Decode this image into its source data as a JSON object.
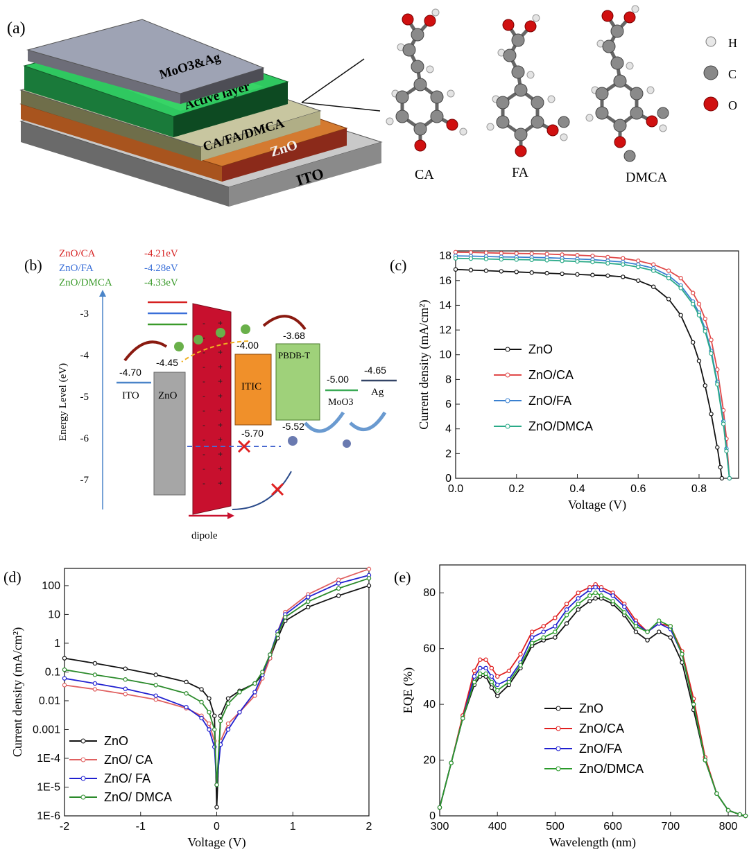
{
  "panel_a": {
    "label": "(a)",
    "layers": [
      "MoO3&Ag",
      "Active layer",
      "CA/FA/DMCA",
      "ZnO",
      "ITO"
    ],
    "molecules": [
      "CA",
      "FA",
      "DMCA"
    ],
    "atom_legend": [
      "H",
      "C",
      "O"
    ]
  },
  "panel_b": {
    "label": "(b)",
    "legend": [
      {
        "name": "ZnO/CA",
        "value": "-4.21eV",
        "color": "#d62020"
      },
      {
        "name": "ZnO/FA",
        "value": "-4.28eV",
        "color": "#3a6fd8"
      },
      {
        "name": "ZnO/DMCA",
        "value": "-4.33eV",
        "color": "#3a9a2a"
      }
    ],
    "ylabel": "Energy Level   (eV)",
    "yticks": [
      "-3",
      "-4",
      "-5",
      "-6",
      "-7"
    ],
    "levels": {
      "ito": "-4.70",
      "zno": "-4.45",
      "itic_lumo": "-4.00",
      "itic_homo": "-5.70",
      "pbdb_lumo": "-3.68",
      "pbdb_homo": "-5.52",
      "moo3": "-5.00",
      "ag": "-4.65"
    },
    "blocks": {
      "ito": "ITO",
      "zno": "ZnO",
      "itic": "ITIC",
      "pbdb": "PBDB-T",
      "moo3": "MoO3",
      "ag": "Ag"
    },
    "dipole": "dipole",
    "colors": {
      "zno": "#a6a6a6",
      "dipole": "#c8102e",
      "itic": "#f0902a",
      "pbdb": "#9fd17a"
    }
  },
  "chart_data": [
    {
      "id": "c",
      "type": "line",
      "label": "(c)",
      "xlabel": "Voltage (V)",
      "ylabel": "Current density (mA/cm²)",
      "xlim": [
        0,
        0.93
      ],
      "ylim": [
        0,
        18.4
      ],
      "xticks": [
        "0.0",
        "0.2",
        "0.4",
        "0.6",
        "0.8"
      ],
      "yticks": [
        "0",
        "2",
        "4",
        "6",
        "8",
        "10",
        "12",
        "14",
        "16",
        "18"
      ],
      "legend_position": "center",
      "series": [
        {
          "name": "ZnO",
          "color": "#111111",
          "x": [
            0,
            0.05,
            0.1,
            0.15,
            0.2,
            0.25,
            0.3,
            0.35,
            0.4,
            0.45,
            0.5,
            0.55,
            0.6,
            0.65,
            0.7,
            0.74,
            0.78,
            0.8,
            0.82,
            0.84,
            0.86,
            0.87,
            0.875
          ],
          "y": [
            16.9,
            16.85,
            16.8,
            16.75,
            16.7,
            16.65,
            16.6,
            16.55,
            16.5,
            16.45,
            16.4,
            16.3,
            16.0,
            15.5,
            14.5,
            13.2,
            11.0,
            9.5,
            7.5,
            5.2,
            2.5,
            0.9,
            0
          ]
        },
        {
          "name": "ZnO/CA",
          "color": "#e04848",
          "x": [
            0,
            0.05,
            0.1,
            0.15,
            0.2,
            0.25,
            0.3,
            0.35,
            0.4,
            0.45,
            0.5,
            0.55,
            0.6,
            0.65,
            0.7,
            0.74,
            0.78,
            0.8,
            0.82,
            0.84,
            0.86,
            0.88,
            0.89,
            0.9
          ],
          "y": [
            18.3,
            18.28,
            18.25,
            18.22,
            18.2,
            18.18,
            18.15,
            18.1,
            18.05,
            18.0,
            17.9,
            17.8,
            17.6,
            17.3,
            16.8,
            16.2,
            15.0,
            14.1,
            12.9,
            11.2,
            8.8,
            5.5,
            3.2,
            0
          ]
        },
        {
          "name": "ZnO/FA",
          "color": "#3a80d0",
          "x": [
            0,
            0.05,
            0.1,
            0.15,
            0.2,
            0.25,
            0.3,
            0.35,
            0.4,
            0.45,
            0.5,
            0.55,
            0.6,
            0.65,
            0.7,
            0.74,
            0.78,
            0.8,
            0.82,
            0.84,
            0.86,
            0.88,
            0.89,
            0.9
          ],
          "y": [
            18.0,
            17.98,
            17.95,
            17.92,
            17.9,
            17.88,
            17.85,
            17.8,
            17.75,
            17.7,
            17.6,
            17.5,
            17.3,
            17.0,
            16.4,
            15.6,
            14.3,
            13.4,
            12.1,
            10.3,
            7.8,
            4.6,
            2.4,
            0
          ]
        },
        {
          "name": "ZnO/DMCA",
          "color": "#2aaa88",
          "x": [
            0,
            0.05,
            0.1,
            0.15,
            0.2,
            0.25,
            0.3,
            0.35,
            0.4,
            0.45,
            0.5,
            0.55,
            0.6,
            0.65,
            0.7,
            0.74,
            0.78,
            0.8,
            0.82,
            0.84,
            0.86,
            0.88,
            0.89,
            0.9
          ],
          "y": [
            17.8,
            17.78,
            17.75,
            17.72,
            17.7,
            17.68,
            17.65,
            17.6,
            17.55,
            17.5,
            17.4,
            17.3,
            17.1,
            16.8,
            16.2,
            15.4,
            14.1,
            13.2,
            11.9,
            10.1,
            7.6,
            4.4,
            2.2,
            0
          ]
        }
      ]
    },
    {
      "id": "d",
      "type": "line",
      "label": "(d)",
      "xlabel": "Voltage (V)",
      "ylabel": "Current density (mA/cm²)",
      "xlim": [
        -2,
        2
      ],
      "ylim_log10": [
        -6,
        2.6
      ],
      "xticks": [
        "-2",
        "-1",
        "0",
        "1",
        "2"
      ],
      "yticks": [
        "1E-6",
        "1E-5",
        "1E-4",
        "0.001",
        "0.01",
        "0.1",
        "1",
        "10",
        "100"
      ],
      "yscale": "log",
      "legend_position": "bottom-left",
      "series": [
        {
          "name": "ZnO",
          "color": "#111111",
          "x": [
            -2,
            -1.6,
            -1.2,
            -0.8,
            -0.4,
            -0.2,
            -0.1,
            -0.03,
            0,
            0.05,
            0.15,
            0.3,
            0.5,
            0.6,
            0.7,
            0.8,
            0.9,
            1.2,
            1.6,
            2
          ],
          "y": [
            0.3,
            0.2,
            0.13,
            0.08,
            0.045,
            0.025,
            0.012,
            0.003,
            2e-06,
            0.003,
            0.012,
            0.022,
            0.04,
            0.08,
            0.3,
            1.5,
            6,
            18,
            45,
            100
          ]
        },
        {
          "name": "ZnO/ CA",
          "color": "#e06060",
          "x": [
            -2,
            -1.6,
            -1.2,
            -0.8,
            -0.4,
            -0.2,
            -0.1,
            -0.03,
            0,
            0.05,
            0.15,
            0.3,
            0.5,
            0.6,
            0.7,
            0.8,
            0.9,
            1.2,
            1.6,
            2
          ],
          "y": [
            0.035,
            0.025,
            0.017,
            0.011,
            0.0055,
            0.003,
            0.0016,
            0.0004,
            1.2e-05,
            0.0004,
            0.0016,
            0.004,
            0.015,
            0.06,
            0.3,
            2.5,
            12,
            50,
            160,
            380
          ]
        },
        {
          "name": "ZnO/ FA",
          "color": "#2020d0",
          "x": [
            -2,
            -1.6,
            -1.2,
            -0.8,
            -0.4,
            -0.2,
            -0.1,
            -0.03,
            0,
            0.05,
            0.15,
            0.3,
            0.5,
            0.6,
            0.7,
            0.8,
            0.9,
            1.2,
            1.6,
            2
          ],
          "y": [
            0.06,
            0.04,
            0.026,
            0.015,
            0.006,
            0.0025,
            0.001,
            0.00025,
            1.2e-05,
            0.0003,
            0.001,
            0.004,
            0.02,
            0.08,
            0.4,
            2.5,
            10,
            40,
            120,
            230
          ]
        },
        {
          "name": "ZnO/ DMCA",
          "color": "#2a8a2a",
          "x": [
            -2,
            -1.6,
            -1.2,
            -0.8,
            -0.4,
            -0.2,
            -0.1,
            -0.03,
            0,
            0.05,
            0.15,
            0.3,
            0.5,
            0.6,
            0.7,
            0.8,
            0.9,
            1.2,
            1.6,
            2
          ],
          "y": [
            0.12,
            0.08,
            0.055,
            0.035,
            0.018,
            0.009,
            0.004,
            0.001,
            1.2e-05,
            0.002,
            0.008,
            0.02,
            0.04,
            0.1,
            0.4,
            2,
            8,
            28,
            80,
            180
          ]
        }
      ]
    },
    {
      "id": "e",
      "type": "line",
      "label": "(e)",
      "xlabel": "Wavelength (nm)",
      "ylabel": "EQE (%)",
      "xlim": [
        300,
        830
      ],
      "ylim": [
        0,
        90
      ],
      "xticks": [
        "300",
        "400",
        "500",
        "600",
        "700",
        "800"
      ],
      "yticks": [
        "0",
        "20",
        "40",
        "60",
        "80"
      ],
      "legend_position": "center-bottom",
      "series": [
        {
          "name": "ZnO",
          "color": "#111111",
          "x": [
            300,
            320,
            340,
            360,
            370,
            380,
            390,
            400,
            420,
            440,
            460,
            480,
            500,
            520,
            540,
            560,
            570,
            580,
            600,
            620,
            640,
            660,
            680,
            700,
            720,
            740,
            760,
            780,
            800,
            820,
            830
          ],
          "y": [
            3,
            19,
            35,
            47,
            50,
            50,
            46,
            43,
            47,
            53,
            61,
            63,
            64,
            69,
            74,
            77,
            78,
            78,
            76,
            72,
            66,
            63,
            66,
            64,
            55,
            38,
            20,
            8,
            2,
            0.5,
            0
          ]
        },
        {
          "name": "ZnO/CA",
          "color": "#e02020",
          "x": [
            300,
            320,
            340,
            360,
            370,
            380,
            390,
            400,
            420,
            440,
            460,
            480,
            500,
            520,
            540,
            560,
            570,
            580,
            600,
            620,
            640,
            660,
            680,
            700,
            720,
            740,
            760,
            780,
            800,
            820,
            830
          ],
          "y": [
            3,
            19,
            36,
            52,
            56,
            56,
            53,
            50,
            52,
            58,
            66,
            68,
            71,
            76,
            80,
            82,
            83,
            82,
            80,
            76,
            70,
            66,
            69,
            68,
            59,
            42,
            21,
            8,
            2,
            0.5,
            0
          ]
        },
        {
          "name": "ZnO/FA",
          "color": "#2020d0",
          "x": [
            300,
            320,
            340,
            360,
            370,
            380,
            390,
            400,
            420,
            440,
            460,
            480,
            500,
            520,
            540,
            560,
            570,
            580,
            600,
            620,
            640,
            660,
            680,
            700,
            720,
            740,
            760,
            780,
            800,
            820,
            830
          ],
          "y": [
            3,
            19,
            35,
            50,
            53,
            53,
            50,
            47,
            49,
            55,
            64,
            66,
            68,
            74,
            78,
            81,
            82,
            81,
            79,
            75,
            69,
            66,
            69,
            67,
            58,
            40,
            20,
            8,
            2,
            0.5,
            0
          ]
        },
        {
          "name": "ZnO/DMCA",
          "color": "#2a9a2a",
          "x": [
            300,
            320,
            340,
            360,
            370,
            380,
            390,
            400,
            420,
            440,
            460,
            480,
            500,
            520,
            540,
            560,
            570,
            580,
            600,
            620,
            640,
            660,
            680,
            700,
            720,
            740,
            760,
            780,
            800,
            820,
            830
          ],
          "y": [
            3,
            19,
            35,
            48,
            51,
            51,
            48,
            45,
            48,
            54,
            62,
            64,
            66,
            72,
            76,
            79,
            80,
            79,
            77,
            73,
            68,
            66,
            70,
            68,
            58,
            40,
            20,
            8,
            2,
            0.5,
            0
          ]
        }
      ]
    }
  ]
}
